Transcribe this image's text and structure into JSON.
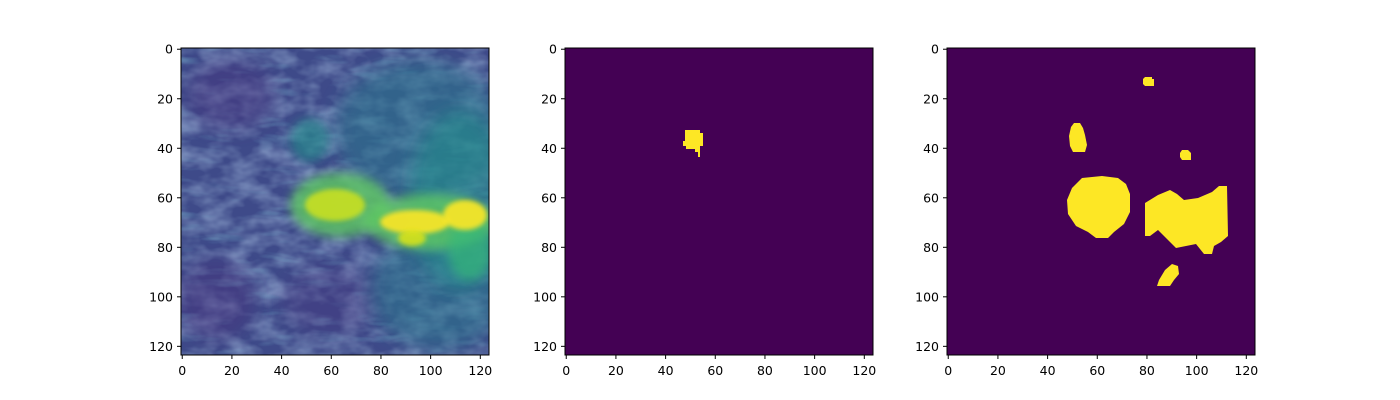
{
  "figure": {
    "panels": [
      {
        "id": "panel-1-intensity-image",
        "kind": "grayscale-texture (viridis colormap)"
      },
      {
        "id": "panel-2-mask-a",
        "kind": "binary-mask"
      },
      {
        "id": "panel-3-mask-b",
        "kind": "binary-mask"
      }
    ],
    "colormap": "viridis",
    "colors": {
      "low": "#440154",
      "mid_low": "#3b528b",
      "mid": "#21918c",
      "mid_high": "#5ec962",
      "high": "#fde725"
    },
    "axes": {
      "x_ticks": [
        "0",
        "20",
        "40",
        "60",
        "80",
        "100",
        "120"
      ],
      "y_ticks": [
        "0",
        "20",
        "40",
        "60",
        "80",
        "100",
        "120"
      ],
      "x_tick_values": [
        0,
        20,
        40,
        60,
        80,
        100,
        120
      ],
      "y_tick_values": [
        0,
        20,
        40,
        60,
        80,
        100,
        120
      ],
      "xlim": [
        -0.5,
        123.5
      ],
      "ylim": [
        123.5,
        -0.5
      ]
    }
  }
}
